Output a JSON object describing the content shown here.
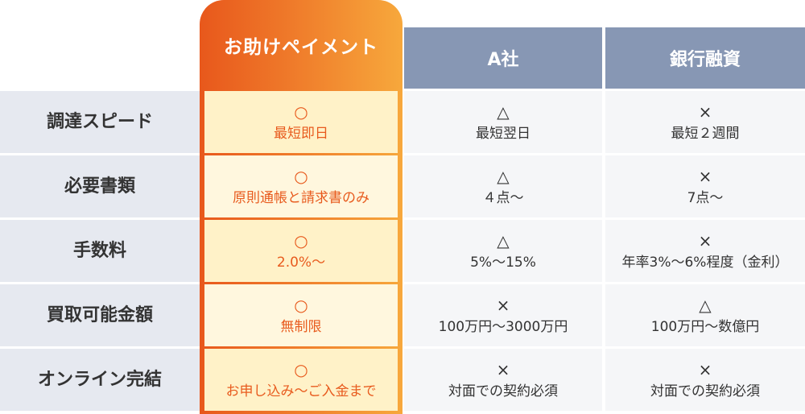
{
  "header": {
    "highlight": "お助けペイメント",
    "col_a": "A社",
    "col_b": "銀行融資"
  },
  "rows": [
    {
      "label": "調達スピード",
      "highlight": {
        "mark": "○",
        "text": "最短即日"
      },
      "a": {
        "mark": "△",
        "text": "最短翌日"
      },
      "b": {
        "mark": "×",
        "text": "最短２週間"
      }
    },
    {
      "label": "必要書類",
      "highlight": {
        "mark": "○",
        "text": "原則通帳と請求書のみ"
      },
      "a": {
        "mark": "△",
        "text": "４点～"
      },
      "b": {
        "mark": "×",
        "text": "7点～"
      }
    },
    {
      "label": "手数料",
      "highlight": {
        "mark": "○",
        "text": "2.0%～"
      },
      "a": {
        "mark": "△",
        "text": "5%～15%"
      },
      "b": {
        "mark": "×",
        "text": "年率3%～6%程度（金利）"
      }
    },
    {
      "label": "買取可能金額",
      "highlight": {
        "mark": "○",
        "text": "無制限"
      },
      "a": {
        "mark": "×",
        "text": "100万円～3000万円"
      },
      "b": {
        "mark": "△",
        "text": "100万円～数億円"
      }
    },
    {
      "label": "オンライン完結",
      "highlight": {
        "mark": "○",
        "text": "お申し込み～ご入金まで"
      },
      "a": {
        "mark": "×",
        "text": "対面での契約必須"
      },
      "b": {
        "mark": "×",
        "text": "対面での契約必須"
      }
    }
  ],
  "colors": {
    "accent_start": "#e8581c",
    "accent_end": "#f7a83c",
    "header": "#8797b4"
  }
}
